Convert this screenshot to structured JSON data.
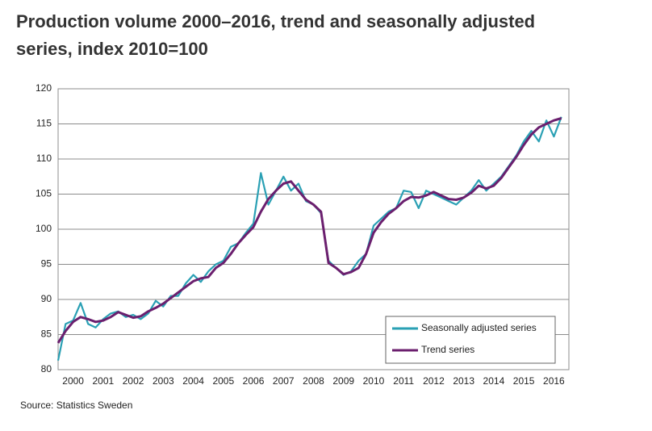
{
  "chart_data": {
    "type": "line",
    "title": "Production volume 2000–2016, trend and seasonally adjusted",
    "subtitle": "series, index 2010=100",
    "source": "Source: Statistics Sweden",
    "x": [
      2000,
      2000.25,
      2000.5,
      2000.75,
      2001,
      2001.25,
      2001.5,
      2001.75,
      2002,
      2002.25,
      2002.5,
      2002.75,
      2003,
      2003.25,
      2003.5,
      2003.75,
      2004,
      2004.25,
      2004.5,
      2004.75,
      2005,
      2005.25,
      2005.5,
      2005.75,
      2006,
      2006.25,
      2006.5,
      2006.75,
      2007,
      2007.25,
      2007.5,
      2007.75,
      2008,
      2008.25,
      2008.5,
      2008.75,
      2009,
      2009.25,
      2009.5,
      2009.75,
      2010,
      2010.25,
      2010.5,
      2010.75,
      2011,
      2011.25,
      2011.5,
      2011.75,
      2012,
      2012.25,
      2012.5,
      2012.75,
      2013,
      2013.25,
      2013.5,
      2013.75,
      2014,
      2014.25,
      2014.5,
      2014.75,
      2015,
      2015.25,
      2015.5,
      2015.75,
      2016,
      2016.25,
      2016.5,
      2016.75
    ],
    "series": [
      {
        "name": "Seasonally adjusted series",
        "color": "#2aa0b4",
        "values": [
          81.3,
          86.5,
          87.0,
          89.5,
          86.5,
          86.0,
          87.2,
          88.0,
          88.3,
          87.5,
          87.8,
          87.2,
          88.0,
          89.8,
          89.0,
          90.5,
          90.5,
          92.3,
          93.5,
          92.5,
          94.0,
          95.0,
          95.5,
          97.5,
          98.0,
          99.5,
          100.8,
          108.0,
          103.5,
          105.5,
          107.5,
          105.5,
          106.5,
          104.0,
          103.5,
          102.3,
          95.5,
          94.5,
          93.5,
          94.0,
          95.5,
          96.5,
          100.5,
          101.5,
          102.5,
          103.0,
          105.5,
          105.3,
          103.0,
          105.5,
          105.0,
          104.5,
          104.0,
          103.5,
          104.5,
          105.5,
          107.0,
          105.5,
          106.5,
          107.5,
          109.0,
          110.5,
          112.5,
          114.0,
          112.5,
          115.5,
          113.2,
          116.0
        ]
      },
      {
        "name": "Trend series",
        "color": "#6b1f6e",
        "values": [
          83.8,
          85.5,
          86.8,
          87.5,
          87.2,
          86.8,
          87.0,
          87.5,
          88.2,
          87.8,
          87.4,
          87.6,
          88.3,
          88.8,
          89.4,
          90.2,
          91.0,
          91.8,
          92.6,
          93.0,
          93.2,
          94.5,
          95.2,
          96.5,
          98.0,
          99.2,
          100.3,
          102.5,
          104.3,
          105.5,
          106.5,
          106.8,
          105.5,
          104.2,
          103.5,
          102.5,
          95.2,
          94.5,
          93.6,
          93.9,
          94.5,
          96.5,
          99.5,
          101.0,
          102.2,
          103.0,
          104.0,
          104.6,
          104.5,
          104.8,
          105.3,
          104.8,
          104.3,
          104.2,
          104.5,
          105.2,
          106.2,
          105.8,
          106.2,
          107.3,
          108.8,
          110.3,
          112.0,
          113.5,
          114.5,
          115.0,
          115.5,
          115.8
        ]
      }
    ],
    "xlim": [
      2000,
      2017
    ],
    "xticks": [
      {
        "value": 2000.5,
        "label": "2000"
      },
      {
        "value": 2001.5,
        "label": "2001"
      },
      {
        "value": 2002.5,
        "label": "2002"
      },
      {
        "value": 2003.5,
        "label": "2003"
      },
      {
        "value": 2004.5,
        "label": "2004"
      },
      {
        "value": 2005.5,
        "label": "2005"
      },
      {
        "value": 2006.5,
        "label": "2006"
      },
      {
        "value": 2007.5,
        "label": "2007"
      },
      {
        "value": 2008.5,
        "label": "2008"
      },
      {
        "value": 2009.5,
        "label": "2009"
      },
      {
        "value": 2010.5,
        "label": "2010"
      },
      {
        "value": 2011.5,
        "label": "2011"
      },
      {
        "value": 2012.5,
        "label": "2012"
      },
      {
        "value": 2013.5,
        "label": "2013"
      },
      {
        "value": 2014.5,
        "label": "2014"
      },
      {
        "value": 2015.5,
        "label": "2015"
      },
      {
        "value": 2016.5,
        "label": "2016"
      }
    ],
    "ylim": [
      80,
      120
    ],
    "yticks": [
      80,
      85,
      90,
      95,
      100,
      105,
      110,
      115,
      120
    ],
    "grid": true,
    "legend": "lower right"
  }
}
